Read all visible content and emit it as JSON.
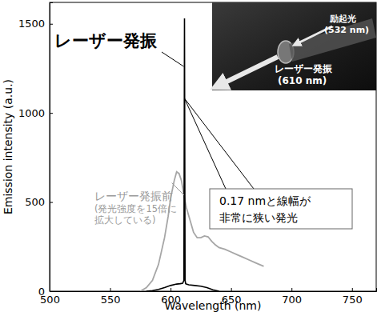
{
  "chart_data": {
    "type": "line",
    "x_label": "Wavelength (nm)",
    "y_label": "Emission intensity (a.u.)",
    "xlim": [
      500,
      770
    ],
    "xticks": [
      500,
      550,
      600,
      650,
      700,
      750
    ],
    "ylim": [
      0,
      1620
    ],
    "yticks": [
      0,
      500,
      1000,
      1500
    ],
    "series": [
      {
        "color": "#a6a6a6",
        "line_style": "solid",
        "x": [
          575,
          580,
          585,
          590,
          595,
          598,
          600,
          603,
          605,
          607,
          609,
          611,
          613,
          616,
          619,
          622,
          625,
          628,
          631,
          634,
          637,
          640,
          645,
          650,
          655,
          660,
          665,
          670,
          677
        ],
        "values": [
          0,
          20,
          60,
          150,
          300,
          420,
          520,
          620,
          670,
          660,
          620,
          540,
          470,
          400,
          330,
          300,
          300,
          310,
          305,
          280,
          260,
          245,
          235,
          220,
          205,
          190,
          175,
          160,
          140
        ]
      },
      {
        "color": "#000000",
        "line_style": "solid",
        "x": [
          580,
          585,
          590,
          595,
          600,
          605,
          608,
          610,
          611,
          611.5,
          612,
          612.5,
          613,
          615,
          620,
          625,
          630,
          635,
          640
        ],
        "values": [
          0,
          3,
          10,
          20,
          32,
          40,
          42,
          45,
          60,
          1530,
          60,
          42,
          40,
          36,
          32,
          28,
          20,
          8,
          0
        ]
      }
    ],
    "annotations": [
      "レーザー発振",
      "レーザー発振前",
      "(発光強度を15倍に",
      "拡大している)",
      "0.17 nmと線幅が",
      "非常に狭い発光",
      "励起光",
      "(532 nm)",
      "レーザー発振",
      "(610 nm)"
    ]
  }
}
